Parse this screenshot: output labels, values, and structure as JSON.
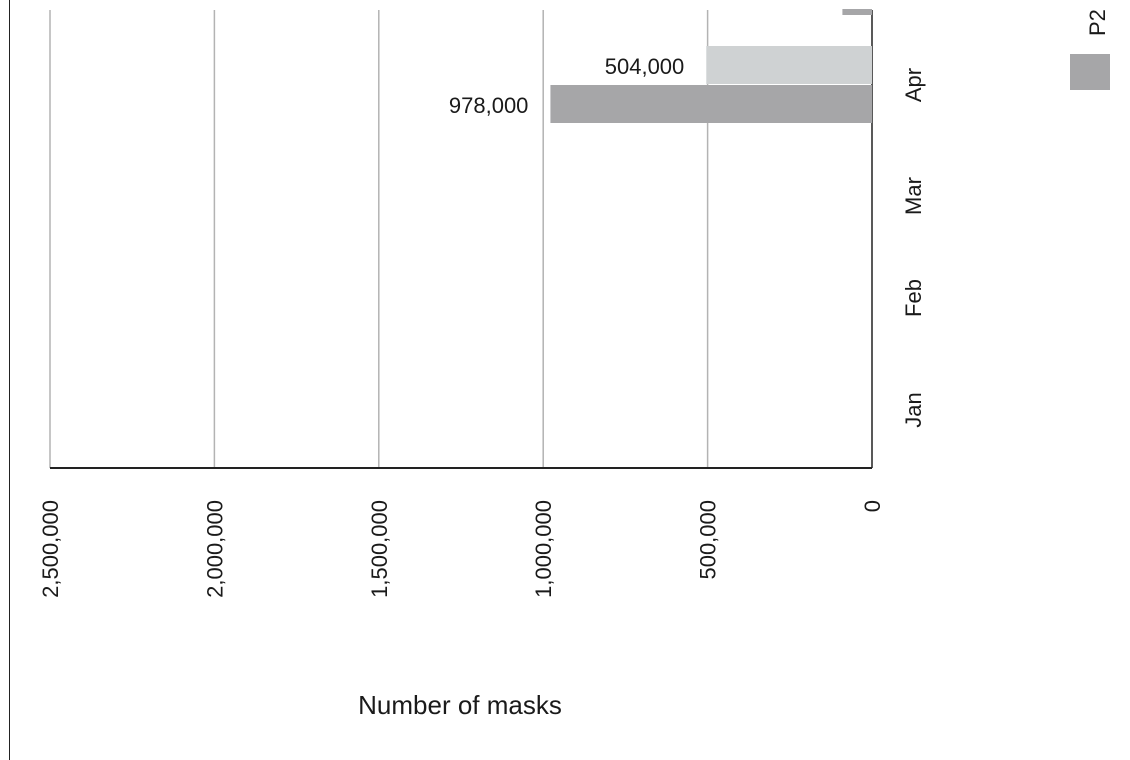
{
  "chart_data": {
    "type": "bar",
    "orientation": "horizontal",
    "categories": [
      "Jan",
      "Feb",
      "Mar",
      "Apr"
    ],
    "series": [
      {
        "name": "",
        "color": "#cfd2d3",
        "values": [
          null,
          null,
          null,
          504000
        ]
      },
      {
        "name": "P2",
        "color": "#a6a6a8",
        "values": [
          null,
          null,
          null,
          978000
        ]
      }
    ],
    "data_labels": [
      "504,000",
      "978,000"
    ],
    "xlabel": "Number of masks",
    "ticks": [
      "0",
      "500,000",
      "1,000,000",
      "1,500,000",
      "2,000,000",
      "2,500,000"
    ],
    "tick_values": [
      0,
      500000,
      1000000,
      1500000,
      2000000,
      2500000
    ],
    "xlim": [
      0,
      2500000
    ],
    "x_reversed": true,
    "grid": true,
    "legend": {
      "position": "top-right",
      "entries": [
        "P2"
      ]
    },
    "cropped_bar_above": {
      "color": "#a6a6a8",
      "value": 90000
    }
  }
}
